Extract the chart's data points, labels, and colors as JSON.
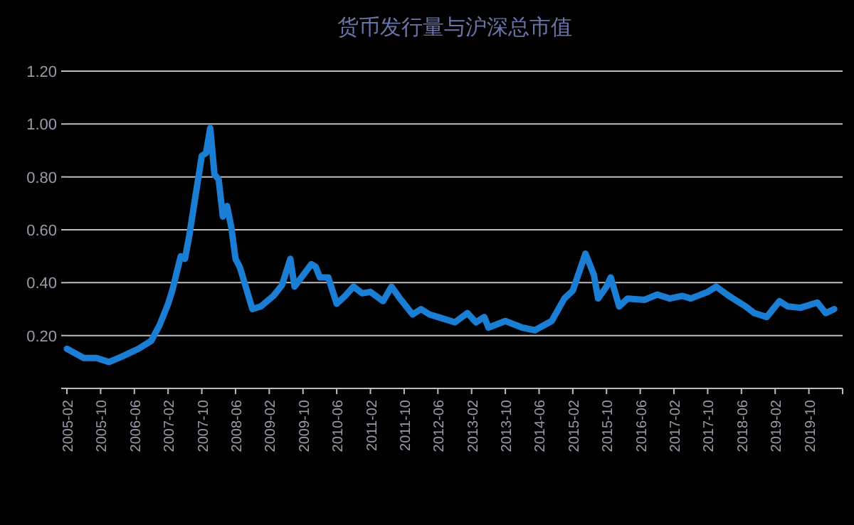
{
  "chart_data": {
    "type": "line",
    "title": "货币发行量与沪深总市值",
    "x": [
      "2005-02",
      "2005-06",
      "2005-09",
      "2005-12",
      "2006-03",
      "2006-07",
      "2006-10",
      "2006-12",
      "2007-02",
      "2007-03",
      "2007-05",
      "2007-06",
      "2007-07",
      "2007-10",
      "2007-11",
      "2007-12",
      "2008-01",
      "2008-02",
      "2008-03",
      "2008-04",
      "2008-05",
      "2008-06",
      "2008-07",
      "2008-10",
      "2008-12",
      "2009-03",
      "2009-05",
      "2009-07",
      "2009-08",
      "2009-12",
      "2010-01",
      "2010-02",
      "2010-04",
      "2010-06",
      "2010-08",
      "2010-10",
      "2010-12",
      "2011-02",
      "2011-05",
      "2011-07",
      "2011-09",
      "2011-12",
      "2012-02",
      "2012-04",
      "2012-06",
      "2012-10",
      "2013-01",
      "2013-03",
      "2013-05",
      "2013-06",
      "2013-10",
      "2014-02",
      "2014-05",
      "2014-09",
      "2014-12",
      "2015-02",
      "2015-05",
      "2015-07",
      "2015-08",
      "2015-10",
      "2015-11",
      "2016-01",
      "2016-03",
      "2016-07",
      "2016-10",
      "2017-01",
      "2017-04",
      "2017-06",
      "2017-10",
      "2017-12",
      "2018-03",
      "2018-07",
      "2018-09",
      "2018-12",
      "2019-03",
      "2019-05",
      "2019-08",
      "2019-12",
      "2020-02",
      "2020-04"
    ],
    "series": [
      {
        "color": "#1a7fd4",
        "values": [
          0.15,
          0.115,
          0.115,
          0.1,
          0.12,
          0.15,
          0.18,
          0.24,
          0.32,
          0.37,
          0.5,
          0.49,
          0.575,
          0.88,
          0.89,
          0.985,
          0.81,
          0.79,
          0.65,
          0.69,
          0.61,
          0.49,
          0.46,
          0.3,
          0.31,
          0.35,
          0.39,
          0.49,
          0.385,
          0.47,
          0.46,
          0.42,
          0.42,
          0.32,
          0.35,
          0.385,
          0.36,
          0.365,
          0.33,
          0.385,
          0.34,
          0.28,
          0.3,
          0.28,
          0.27,
          0.25,
          0.285,
          0.25,
          0.27,
          0.23,
          0.255,
          0.23,
          0.22,
          0.255,
          0.34,
          0.37,
          0.51,
          0.43,
          0.34,
          0.385,
          0.42,
          0.31,
          0.34,
          0.335,
          0.355,
          0.34,
          0.35,
          0.34,
          0.365,
          0.385,
          0.35,
          0.31,
          0.285,
          0.27,
          0.33,
          0.31,
          0.305,
          0.325,
          0.285,
          0.3
        ]
      }
    ],
    "xlim": [
      "2005-02",
      "2020-06"
    ],
    "xticks": [
      "2005-02",
      "2005-10",
      "2006-06",
      "2007-02",
      "2007-10",
      "2008-06",
      "2009-02",
      "2009-10",
      "2010-06",
      "2011-02",
      "2011-10",
      "2012-06",
      "2013-02",
      "2013-10",
      "2014-06",
      "2015-02",
      "2015-10",
      "2016-06",
      "2017-02",
      "2017-10",
      "2018-06",
      "2019-02",
      "2019-10"
    ],
    "ylim": [
      0,
      1.2
    ],
    "yticks": [
      {
        "value": 0,
        "label": null
      },
      {
        "value": 0.2,
        "label": "0.20"
      },
      {
        "value": 0.4,
        "label": "0.40"
      },
      {
        "value": 0.6,
        "label": "0.60"
      },
      {
        "value": 0.8,
        "label": "0.80"
      },
      {
        "value": 1.0,
        "label": "1.00"
      },
      {
        "value": 1.2,
        "label": "1.20"
      }
    ],
    "grid": "y",
    "line_style": "solid",
    "marker": "none"
  }
}
